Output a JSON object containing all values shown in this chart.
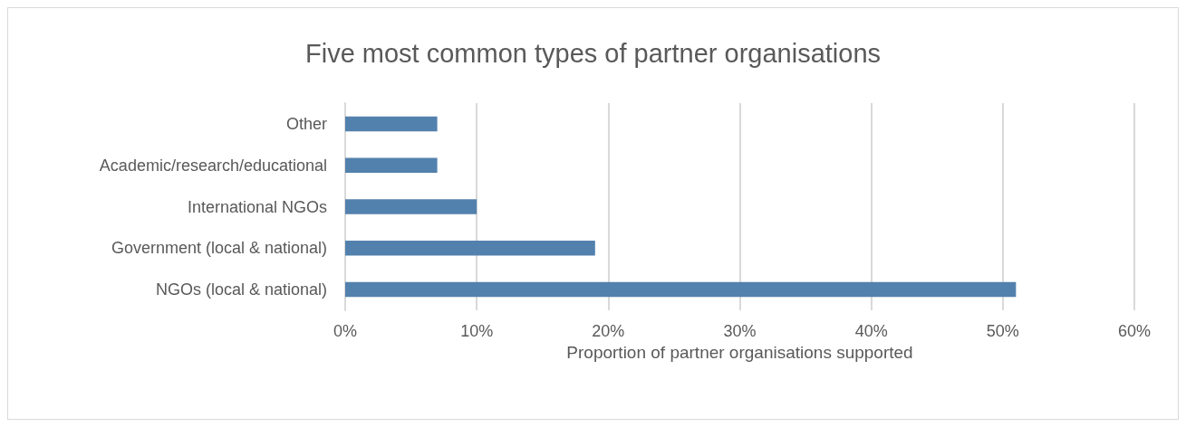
{
  "chart_data": {
    "type": "bar",
    "orientation": "horizontal",
    "title": "Five most common types of partner organisations",
    "xlabel": "Proportion of partner organisations supported",
    "categories": [
      "Other",
      "Academic/research/educational",
      "International NGOs",
      "Government (local & national)",
      "NGOs (local & national)"
    ],
    "values": [
      7,
      7,
      10,
      19,
      51
    ],
    "color": "#5381ad",
    "xlim": [
      0,
      60
    ],
    "xticks": [
      {
        "value": 0,
        "label": "0%"
      },
      {
        "value": 10,
        "label": "10%"
      },
      {
        "value": 20,
        "label": "20%"
      },
      {
        "value": 30,
        "label": "30%"
      },
      {
        "value": 40,
        "label": "40%"
      },
      {
        "value": 50,
        "label": "50%"
      },
      {
        "value": 60,
        "label": "60%"
      }
    ],
    "grid": "x"
  }
}
